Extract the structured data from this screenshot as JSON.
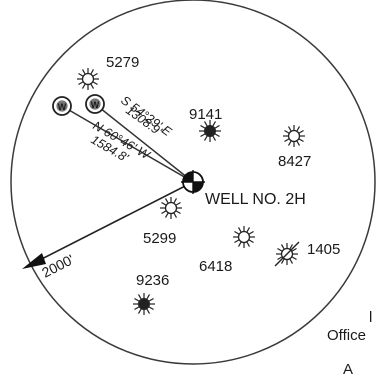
{
  "map": {
    "main_well": {
      "label": "WELL NO. 2H"
    },
    "radius": {
      "label": "2000'"
    },
    "bearings": [
      {
        "direction": "S 54°29' E",
        "distance": "1308.9'"
      },
      {
        "direction": "N 60°46' W",
        "distance": "1584.8'"
      }
    ],
    "well_markers": [
      {
        "symbol": "W"
      },
      {
        "symbol": "W"
      }
    ],
    "wells": [
      {
        "number": "5279",
        "symbol": "sun-open"
      },
      {
        "number": "9141",
        "symbol": "sun-filled"
      },
      {
        "number": "8427",
        "symbol": "sun-open"
      },
      {
        "number": "5299",
        "symbol": "sun-open"
      },
      {
        "number": "6418",
        "symbol": "sun-open"
      },
      {
        "number": "1405",
        "symbol": "sun-slashed"
      },
      {
        "number": "9236",
        "symbol": "sun-filled"
      }
    ],
    "edge_text": {
      "office": "Office",
      "fragment_1": "l",
      "fragment_2": "A"
    }
  }
}
